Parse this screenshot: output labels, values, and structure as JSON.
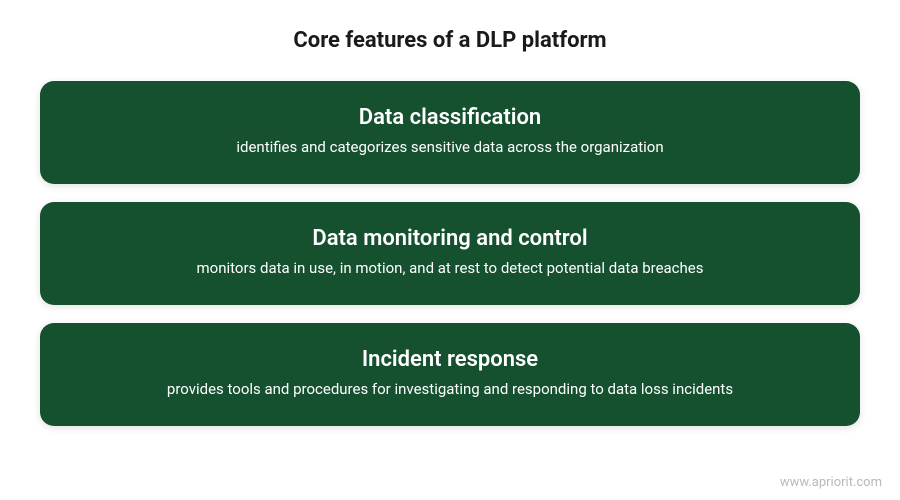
{
  "infographic": {
    "type": "infographic",
    "title": "Core features of a DLP platform",
    "title_fontsize": 22,
    "title_color": "#1a1a1a",
    "background_color": "#ffffff",
    "card_background_color": "#15502f",
    "card_text_color": "#ffffff",
    "card_border_radius": 14,
    "card_heading_fontsize": 22,
    "card_description_fontsize": 15,
    "card_gap": 18,
    "features": [
      {
        "heading": "Data classification",
        "description": "identifies and categorizes sensitive data across the organization"
      },
      {
        "heading": "Data monitoring and control",
        "description": "monitors data in use, in motion, and at rest to detect potential data breaches"
      },
      {
        "heading": "Incident response",
        "description": "provides tools and procedures for investigating and responding to data loss incidents"
      }
    ],
    "watermark": "www.apriorit.com",
    "watermark_color": "#b9b9b9",
    "watermark_fontsize": 13
  }
}
